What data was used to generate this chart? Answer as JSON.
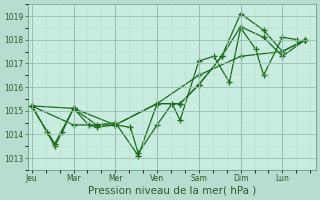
{
  "bg_color": "#b8ddd0",
  "plot_bg_color": "#c8ece0",
  "line_color": "#1a6b1a",
  "grid_color": "#9abfb0",
  "grid_color2": "#c0d8cc",
  "xlabel": "Pression niveau de la mer( hPa )",
  "ylim": [
    1012.5,
    1019.5
  ],
  "yticks": [
    1013,
    1014,
    1015,
    1016,
    1017,
    1018,
    1019
  ],
  "x_labels": [
    "Jeu",
    "Mar",
    "Mer",
    "Ven",
    "Sam",
    "Dim",
    "Lun"
  ],
  "x_sep_positions": [
    0,
    1,
    2,
    3,
    4,
    5,
    6
  ],
  "series": [
    {
      "x": [
        0.0,
        0.36,
        0.55,
        0.73,
        1.0,
        1.36,
        1.55,
        2.0,
        2.36,
        2.55,
        3.0,
        3.36,
        3.55,
        4.0,
        4.36,
        4.73,
        5.0,
        5.36,
        5.55,
        6.0,
        6.36
      ],
      "y": [
        1015.2,
        1014.1,
        1013.5,
        1014.1,
        1015.1,
        1014.4,
        1014.3,
        1014.4,
        1014.3,
        1013.2,
        1014.4,
        1015.3,
        1014.6,
        1017.1,
        1017.3,
        1016.2,
        1018.5,
        1017.6,
        1016.5,
        1018.1,
        1018.0
      ]
    },
    {
      "x": [
        0.0,
        0.55,
        1.0,
        1.55,
        2.0,
        2.55,
        3.0,
        3.55,
        4.0,
        4.55,
        5.0,
        5.55,
        6.0,
        6.55
      ],
      "y": [
        1015.2,
        1013.6,
        1015.1,
        1014.4,
        1014.5,
        1013.1,
        1015.3,
        1015.3,
        1016.1,
        1017.3,
        1019.1,
        1018.4,
        1017.5,
        1018.0
      ]
    },
    {
      "x": [
        0.0,
        1.0,
        2.0,
        3.0,
        3.55,
        4.0,
        4.55,
        5.0,
        5.55,
        6.0,
        6.55
      ],
      "y": [
        1015.2,
        1015.1,
        1014.4,
        1015.3,
        1015.3,
        1016.1,
        1017.3,
        1018.55,
        1018.1,
        1017.3,
        1018.0
      ]
    },
    {
      "x": [
        0.0,
        1.0,
        2.0,
        3.0,
        4.0,
        5.0,
        6.0,
        6.55
      ],
      "y": [
        1015.2,
        1014.4,
        1014.4,
        1015.3,
        1016.5,
        1017.3,
        1017.5,
        1018.0
      ]
    }
  ],
  "marker": "+",
  "marker_size": 4.5,
  "linewidth": 0.9,
  "tick_fontsize": 5.5,
  "xlabel_fontsize": 7.5,
  "xlim": [
    -0.1,
    6.8
  ]
}
